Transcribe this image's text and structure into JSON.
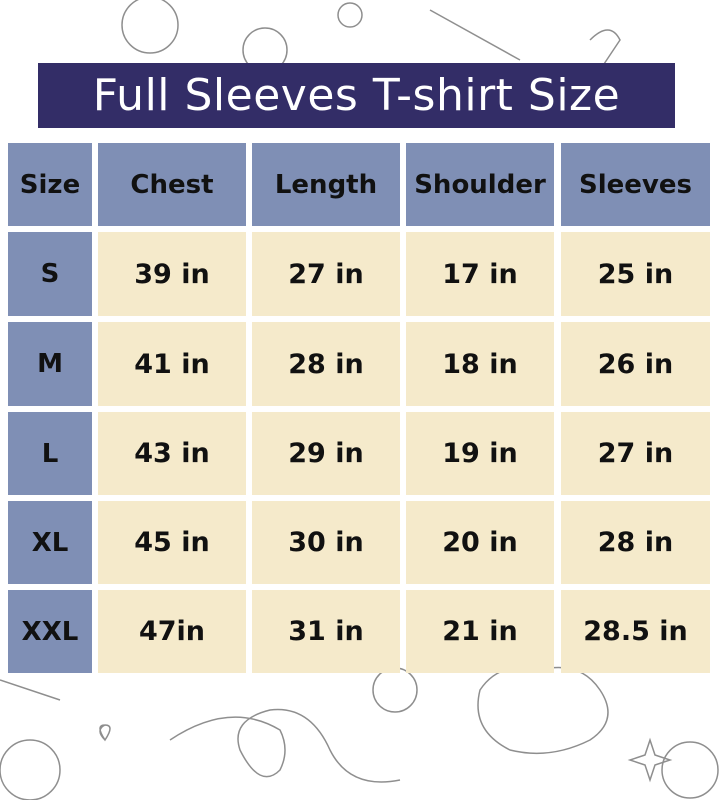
{
  "title": "Full Sleeves T-shirt Size",
  "colors": {
    "title_bg": "#332d67",
    "header_bg": "#7f8fb5",
    "cell_bg": "#f5eacb"
  },
  "headers": [
    "Size",
    "Chest",
    "Length",
    "Shoulder",
    "Sleeves"
  ],
  "rows": [
    [
      "S",
      "39 in",
      "27 in",
      "17 in",
      "25 in"
    ],
    [
      "M",
      "41 in",
      "28 in",
      "18 in",
      "26 in"
    ],
    [
      "L",
      "43 in",
      "29 in",
      "19 in",
      "27 in"
    ],
    [
      "XL",
      "45 in",
      "30 in",
      "20 in",
      "28 in"
    ],
    [
      "XXL",
      "47in",
      "31 in",
      "21 in",
      "28.5 in"
    ]
  ]
}
